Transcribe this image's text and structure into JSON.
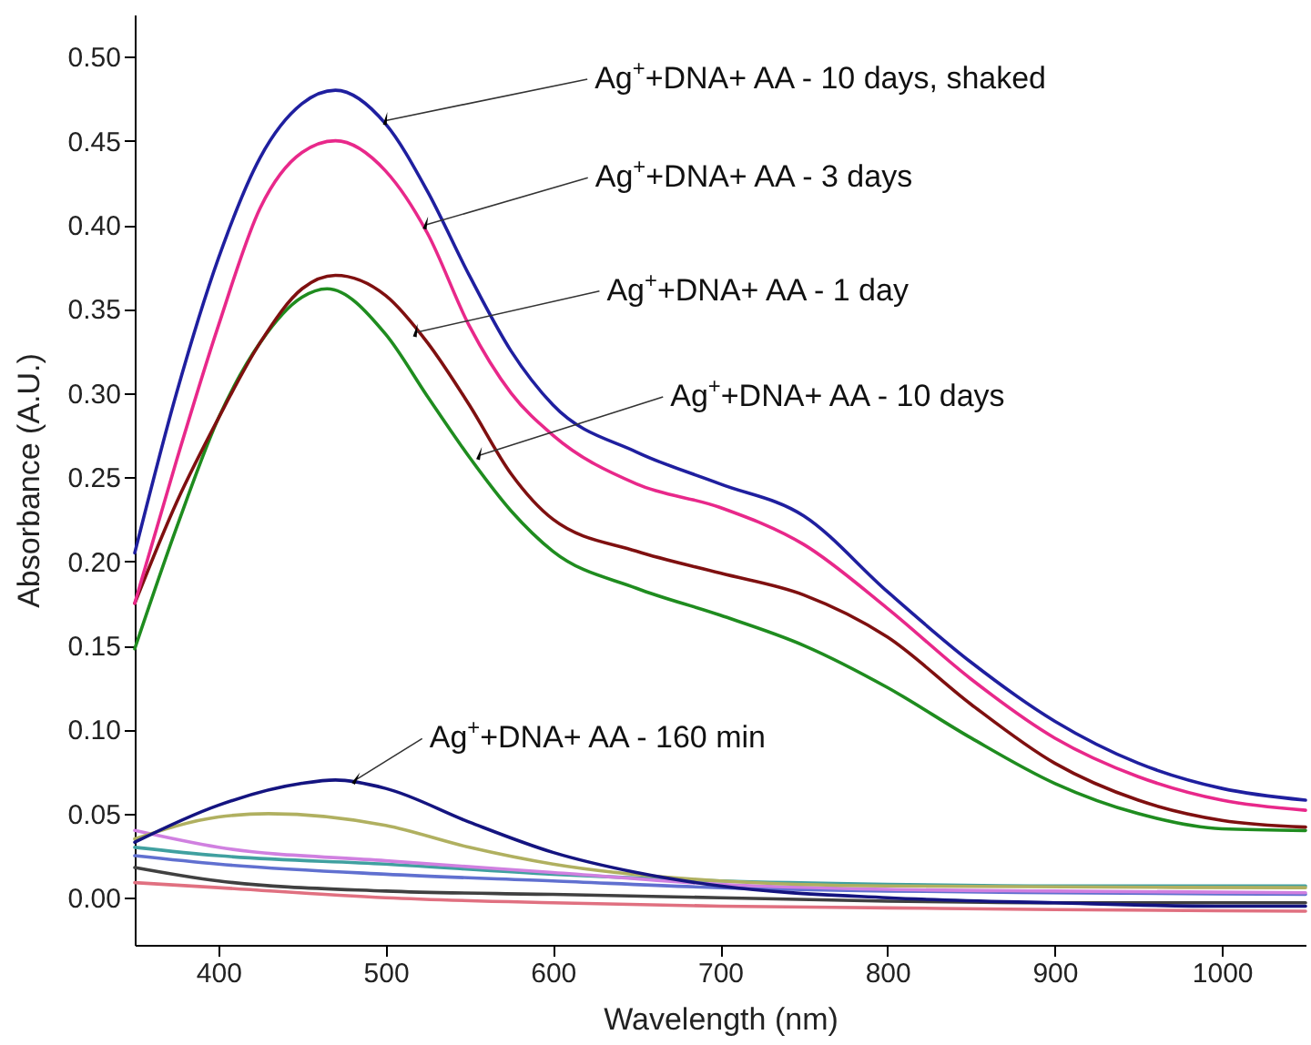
{
  "chart_data": {
    "type": "line",
    "xlabel": "Wavelength (nm)",
    "ylabel": "Absorbance (A.U.)",
    "xlim": [
      350,
      1050
    ],
    "ylim": [
      -0.028,
      0.525
    ],
    "xticks": [
      400,
      500,
      600,
      700,
      800,
      900,
      1000
    ],
    "yticks": [
      {
        "value": 0,
        "label": "0.00"
      },
      {
        "value": 0.05,
        "label": "0.05"
      },
      {
        "value": 0.1,
        "label": "0.10"
      },
      {
        "value": 0.15,
        "label": "0.15"
      },
      {
        "value": 0.2,
        "label": "0.20"
      },
      {
        "value": 0.25,
        "label": "0.25"
      },
      {
        "value": 0.3,
        "label": "0.30"
      },
      {
        "value": 0.35,
        "label": "0.35"
      },
      {
        "value": 0.4,
        "label": "0.40"
      },
      {
        "value": 0.45,
        "label": "0.45"
      },
      {
        "value": 0.5,
        "label": "0.50"
      }
    ],
    "grid": false,
    "legend": false,
    "line_style": "solid",
    "marker": "none",
    "series": [
      {
        "color": "#e07080",
        "x": [
          350,
          400,
          500,
          600,
          700,
          800,
          900,
          1050
        ],
        "values": [
          0.009,
          0.006,
          0.0,
          -0.003,
          -0.005,
          -0.006,
          -0.007,
          -0.008
        ]
      },
      {
        "color": "#404040",
        "x": [
          350,
          400,
          500,
          600,
          700,
          800,
          900,
          1050
        ],
        "values": [
          0.018,
          0.01,
          0.004,
          0.002,
          0.0,
          -0.002,
          -0.003,
          -0.003
        ]
      },
      {
        "color": "#6070d0",
        "x": [
          350,
          400,
          500,
          600,
          700,
          800,
          900,
          1050
        ],
        "values": [
          0.025,
          0.02,
          0.014,
          0.01,
          0.006,
          0.004,
          0.003,
          0.002
        ]
      },
      {
        "color": "#40a0a0",
        "x": [
          350,
          400,
          500,
          600,
          700,
          800,
          900,
          1050
        ],
        "values": [
          0.03,
          0.025,
          0.02,
          0.014,
          0.01,
          0.008,
          0.007,
          0.007
        ]
      },
      {
        "color": "#d080e0",
        "x": [
          350,
          400,
          500,
          600,
          700,
          800,
          900,
          1050
        ],
        "values": [
          0.04,
          0.03,
          0.022,
          0.015,
          0.008,
          0.005,
          0.004,
          0.003
        ]
      },
      {
        "color": "#b0b060",
        "x": [
          350,
          400,
          430,
          500,
          550,
          600,
          700,
          800,
          1050
        ],
        "values": [
          0.035,
          0.048,
          0.05,
          0.043,
          0.03,
          0.02,
          0.01,
          0.007,
          0.006
        ]
      },
      {
        "color": "#141480",
        "x": [
          350,
          400,
          450,
          470,
          500,
          550,
          600,
          650,
          700,
          800,
          900,
          1000,
          1050
        ],
        "values": [
          0.033,
          0.055,
          0.068,
          0.07,
          0.065,
          0.045,
          0.027,
          0.015,
          0.007,
          0.0,
          -0.003,
          -0.005,
          -0.005
        ]
      },
      {
        "color": "#1f8c1f",
        "x": [
          350,
          375,
          400,
          425,
          450,
          465,
          500,
          525,
          550,
          575,
          600,
          650,
          700,
          750,
          800,
          850,
          900,
          950,
          1000,
          1050
        ],
        "values": [
          0.148,
          0.22,
          0.285,
          0.33,
          0.357,
          0.362,
          0.335,
          0.298,
          0.262,
          0.23,
          0.206,
          0.184,
          0.168,
          0.15,
          0.125,
          0.095,
          0.068,
          0.05,
          0.041,
          0.04
        ]
      },
      {
        "color": "#7f1010",
        "x": [
          350,
          375,
          400,
          425,
          450,
          470,
          500,
          525,
          550,
          575,
          600,
          650,
          700,
          750,
          800,
          850,
          900,
          950,
          1000,
          1050
        ],
        "values": [
          0.175,
          0.235,
          0.285,
          0.33,
          0.362,
          0.37,
          0.358,
          0.33,
          0.293,
          0.252,
          0.225,
          0.206,
          0.193,
          0.18,
          0.155,
          0.115,
          0.08,
          0.058,
          0.046,
          0.042
        ]
      },
      {
        "color": "#e8288a",
        "x": [
          350,
          375,
          400,
          425,
          450,
          470,
          500,
          525,
          550,
          575,
          600,
          650,
          700,
          750,
          800,
          850,
          900,
          950,
          1000,
          1050
        ],
        "values": [
          0.175,
          0.26,
          0.34,
          0.41,
          0.443,
          0.45,
          0.432,
          0.395,
          0.34,
          0.3,
          0.275,
          0.246,
          0.232,
          0.21,
          0.172,
          0.13,
          0.095,
          0.072,
          0.058,
          0.052
        ]
      },
      {
        "color": "#1f1f9f",
        "x": [
          350,
          375,
          400,
          425,
          450,
          470,
          500,
          525,
          550,
          575,
          600,
          650,
          700,
          750,
          800,
          850,
          900,
          950,
          1000,
          1050
        ],
        "values": [
          0.205,
          0.3,
          0.38,
          0.44,
          0.472,
          0.48,
          0.46,
          0.42,
          0.37,
          0.325,
          0.293,
          0.265,
          0.246,
          0.227,
          0.182,
          0.14,
          0.105,
          0.08,
          0.065,
          0.058
        ]
      }
    ],
    "annotations": [
      {
        "text": "Ag$^{+}$+DNA+ AA - 10 days, shaked",
        "x": 500,
        "y": 0.462
      },
      {
        "text": "Ag$^{+}$+DNA+ AA - 3 days",
        "x": 524,
        "y": 0.4
      },
      {
        "text": "Ag$^{+}$+DNA+ AA - 1 day",
        "x": 518,
        "y": 0.336
      },
      {
        "text": "Ag$^{+}$+DNA+ AA - 10 days",
        "x": 556,
        "y": 0.263
      },
      {
        "text": "Ag$^{+}$+DNA+ AA - 160 min",
        "x": 482,
        "y": 0.07
      }
    ]
  }
}
